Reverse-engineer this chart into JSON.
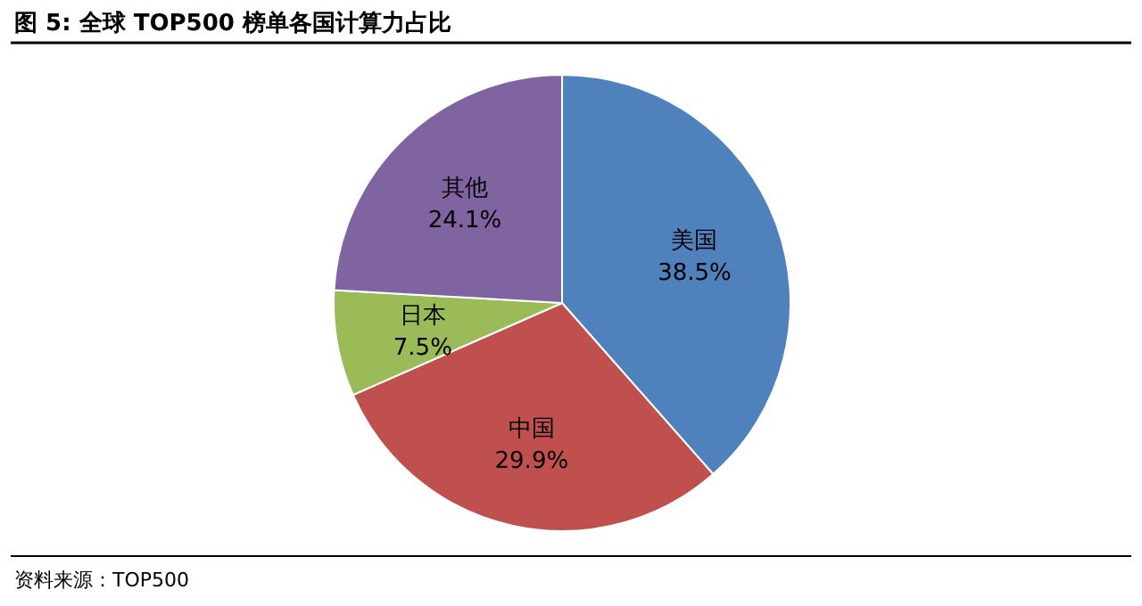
{
  "chart_data": {
    "type": "pie",
    "title": "图 5: 全球 TOP500 榜单各国计算力占比",
    "categories": [
      "美国",
      "中国",
      "日本",
      "其他"
    ],
    "values": [
      38.5,
      29.9,
      7.5,
      24.1
    ],
    "colors": [
      "#4f81bd",
      "#c0504d",
      "#9bbb59",
      "#8064a2"
    ],
    "value_labels": [
      "38.5%",
      "29.9%",
      "7.5%",
      "24.1%"
    ],
    "annotations": [
      "资料来源：TOP500"
    ]
  }
}
